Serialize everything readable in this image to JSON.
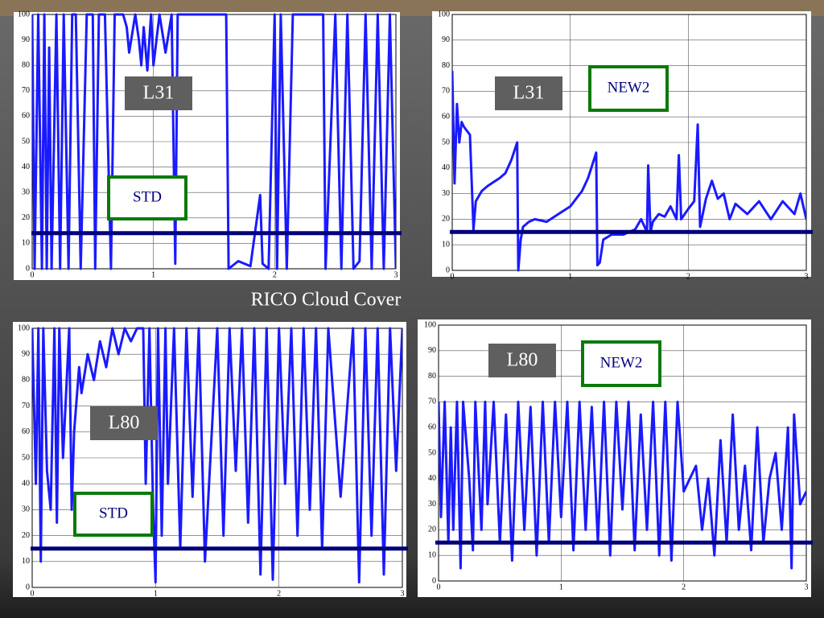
{
  "title": "RICO Cloud Cover",
  "chart_data": [
    {
      "type": "line",
      "annotations": [
        "L31",
        "STD"
      ],
      "xlim": [
        0,
        3
      ],
      "ylim": [
        0,
        100
      ],
      "xticks": [
        0,
        1,
        2,
        3
      ],
      "yticks": [
        0,
        10,
        20,
        30,
        40,
        50,
        60,
        70,
        80,
        90,
        100
      ],
      "grid": true,
      "hline": 14,
      "hline_color": "#00007a",
      "x": [
        0,
        0.02,
        0.05,
        0.08,
        0.1,
        0.12,
        0.14,
        0.16,
        0.2,
        0.23,
        0.26,
        0.3,
        0.33,
        0.36,
        0.4,
        0.45,
        0.5,
        0.52,
        0.55,
        0.6,
        0.65,
        0.68,
        0.75,
        0.78,
        0.8,
        0.85,
        0.88,
        0.9,
        0.92,
        0.95,
        0.98,
        1.0,
        1.05,
        1.1,
        1.15,
        1.18,
        1.2,
        1.6,
        1.62,
        1.7,
        1.8,
        1.88,
        1.9,
        1.95,
        2.0,
        2.02,
        2.05,
        2.1,
        2.15,
        2.2,
        2.3,
        2.4,
        2.42,
        2.5,
        2.55,
        2.6,
        2.65,
        2.7,
        2.75,
        2.8,
        2.85,
        2.9,
        2.95,
        3.0
      ],
      "series": [
        {
          "color": "#1a1aff",
          "values": [
            100,
            0,
            100,
            0,
            100,
            0,
            87,
            0,
            100,
            0,
            100,
            0,
            100,
            100,
            0,
            100,
            100,
            0,
            100,
            100,
            0,
            100,
            100,
            95,
            85,
            100,
            90,
            80,
            95,
            78,
            100,
            80,
            100,
            85,
            100,
            2,
            100,
            100,
            0,
            3,
            1,
            29,
            2,
            0,
            100,
            0,
            100,
            0,
            100,
            100,
            100,
            100,
            0,
            100,
            0,
            100,
            0,
            3,
            100,
            0,
            100,
            0,
            100,
            0
          ]
        }
      ]
    },
    {
      "type": "line",
      "annotations": [
        "L31",
        "NEW2"
      ],
      "xlim": [
        0,
        3
      ],
      "ylim": [
        0,
        100
      ],
      "xticks": [
        0,
        1,
        2,
        3
      ],
      "yticks": [
        0,
        10,
        20,
        30,
        40,
        50,
        60,
        70,
        80,
        90,
        100
      ],
      "grid": true,
      "hline": 15,
      "hline_color": "#00007a",
      "x": [
        0,
        0.02,
        0.04,
        0.06,
        0.08,
        0.1,
        0.15,
        0.18,
        0.2,
        0.25,
        0.3,
        0.4,
        0.45,
        0.5,
        0.55,
        0.56,
        0.58,
        0.6,
        0.65,
        0.7,
        0.8,
        0.9,
        1.0,
        1.1,
        1.15,
        1.22,
        1.23,
        1.25,
        1.28,
        1.35,
        1.45,
        1.5,
        1.55,
        1.6,
        1.65,
        1.66,
        1.68,
        1.7,
        1.75,
        1.8,
        1.85,
        1.9,
        1.92,
        1.94,
        2.0,
        2.05,
        2.08,
        2.1,
        2.15,
        2.2,
        2.25,
        2.3,
        2.35,
        2.4,
        2.5,
        2.6,
        2.7,
        2.8,
        2.9,
        2.95,
        3.0
      ],
      "series": [
        {
          "color": "#1a1aff",
          "values": [
            78,
            34,
            65,
            50,
            58,
            56,
            53,
            16,
            27,
            31,
            33,
            36,
            38,
            43,
            50,
            0,
            12,
            17,
            19,
            20,
            19,
            22,
            25,
            31,
            36,
            46,
            2,
            3,
            12,
            14,
            14,
            15,
            16,
            20,
            15,
            41,
            15,
            19,
            22,
            21,
            25,
            20,
            45,
            20,
            24,
            27,
            57,
            17,
            28,
            35,
            28,
            30,
            20,
            26,
            22,
            27,
            20,
            27,
            22,
            30,
            20
          ]
        }
      ]
    },
    {
      "type": "line",
      "annotations": [
        "L80",
        "STD"
      ],
      "xlim": [
        0,
        3
      ],
      "ylim": [
        0,
        100
      ],
      "xticks": [
        0,
        1,
        2,
        3
      ],
      "yticks": [
        0,
        10,
        20,
        30,
        40,
        50,
        60,
        70,
        80,
        90,
        100
      ],
      "grid": true,
      "hline": 15,
      "hline_color": "#00007a",
      "x": [
        0,
        0.03,
        0.05,
        0.07,
        0.09,
        0.12,
        0.15,
        0.18,
        0.2,
        0.22,
        0.25,
        0.3,
        0.32,
        0.34,
        0.38,
        0.4,
        0.45,
        0.5,
        0.55,
        0.6,
        0.65,
        0.7,
        0.75,
        0.8,
        0.85,
        0.9,
        0.92,
        0.95,
        0.98,
        1.0,
        1.02,
        1.05,
        1.08,
        1.1,
        1.15,
        1.2,
        1.25,
        1.3,
        1.35,
        1.4,
        1.5,
        1.55,
        1.6,
        1.65,
        1.7,
        1.75,
        1.8,
        1.85,
        1.9,
        1.95,
        2.0,
        2.05,
        2.1,
        2.15,
        2.2,
        2.25,
        2.3,
        2.35,
        2.4,
        2.5,
        2.6,
        2.65,
        2.7,
        2.75,
        2.8,
        2.85,
        2.9,
        2.95,
        3.0
      ],
      "series": [
        {
          "color": "#1a1aff",
          "values": [
            100,
            40,
            100,
            10,
            100,
            45,
            30,
            100,
            25,
            100,
            50,
            100,
            30,
            60,
            85,
            75,
            90,
            80,
            95,
            85,
            100,
            90,
            100,
            95,
            100,
            100,
            40,
            100,
            30,
            2,
            100,
            20,
            100,
            40,
            100,
            15,
            100,
            35,
            100,
            10,
            100,
            20,
            100,
            45,
            100,
            25,
            100,
            5,
            100,
            3,
            100,
            40,
            100,
            20,
            100,
            30,
            100,
            15,
            100,
            35,
            100,
            2,
            100,
            20,
            100,
            5,
            100,
            45,
            100
          ]
        }
      ]
    },
    {
      "type": "line",
      "annotations": [
        "L80",
        "NEW2"
      ],
      "xlim": [
        0,
        3
      ],
      "ylim": [
        0,
        100
      ],
      "xticks": [
        0,
        1,
        2,
        3
      ],
      "yticks": [
        0,
        10,
        20,
        30,
        40,
        50,
        60,
        70,
        80,
        90,
        100
      ],
      "grid": true,
      "hline": 15,
      "hline_color": "#00007a",
      "x": [
        0,
        0.02,
        0.05,
        0.08,
        0.1,
        0.12,
        0.15,
        0.18,
        0.2,
        0.25,
        0.28,
        0.3,
        0.35,
        0.38,
        0.4,
        0.45,
        0.5,
        0.55,
        0.6,
        0.65,
        0.7,
        0.75,
        0.8,
        0.85,
        0.9,
        0.95,
        1.0,
        1.05,
        1.1,
        1.15,
        1.2,
        1.25,
        1.3,
        1.35,
        1.4,
        1.45,
        1.5,
        1.55,
        1.6,
        1.65,
        1.7,
        1.75,
        1.8,
        1.85,
        1.9,
        1.95,
        2.0,
        2.1,
        2.15,
        2.2,
        2.25,
        2.3,
        2.35,
        2.4,
        2.45,
        2.5,
        2.55,
        2.6,
        2.65,
        2.7,
        2.75,
        2.8,
        2.85,
        2.88,
        2.9,
        2.95,
        3.0
      ],
      "series": [
        {
          "color": "#1a1aff",
          "values": [
            70,
            25,
            70,
            15,
            60,
            20,
            70,
            5,
            70,
            40,
            12,
            70,
            20,
            70,
            30,
            70,
            15,
            65,
            8,
            70,
            20,
            68,
            10,
            70,
            15,
            70,
            25,
            70,
            12,
            70,
            20,
            68,
            15,
            70,
            10,
            70,
            28,
            70,
            12,
            65,
            20,
            70,
            10,
            70,
            8,
            70,
            35,
            45,
            20,
            40,
            10,
            55,
            15,
            65,
            20,
            45,
            12,
            60,
            15,
            40,
            50,
            20,
            60,
            5,
            65,
            30,
            35
          ]
        }
      ]
    }
  ]
}
